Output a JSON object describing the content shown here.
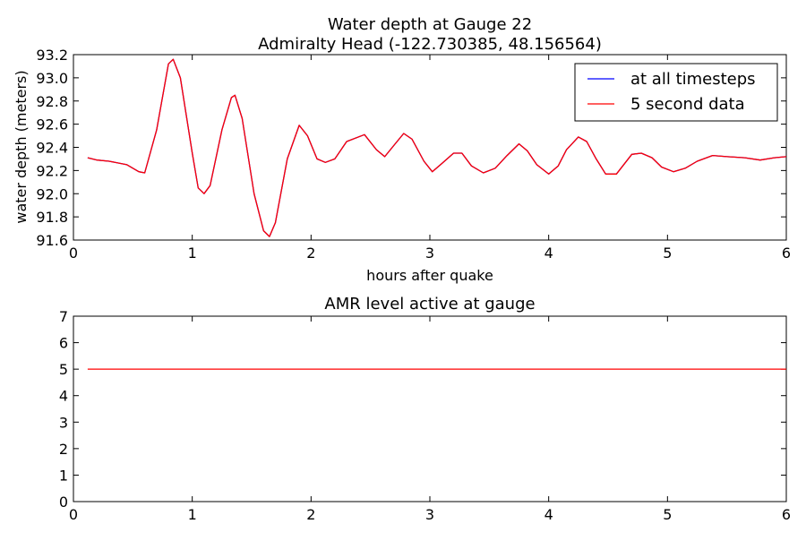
{
  "chart_data": [
    {
      "type": "line",
      "title": "Water depth at Gauge 22",
      "subtitle": "Admiralty Head  (-122.730385, 48.156564)",
      "xlabel": "hours after quake",
      "ylabel": "water depth (meters)",
      "xlim": [
        0,
        6
      ],
      "ylim": [
        91.6,
        93.2
      ],
      "xticks": [
        "0",
        "1",
        "2",
        "3",
        "4",
        "5",
        "6"
      ],
      "yticks": [
        "91.6",
        "91.8",
        "92.0",
        "92.2",
        "92.4",
        "92.6",
        "92.8",
        "93.0",
        "93.2"
      ],
      "grid": false,
      "legend_position": "top-right",
      "series": [
        {
          "name": "at all timesteps",
          "color": "#0000ff",
          "points": [
            [
              0.12,
              92.31
            ],
            [
              0.2,
              92.29
            ],
            [
              0.3,
              92.28
            ],
            [
              0.45,
              92.25
            ],
            [
              0.55,
              92.19
            ],
            [
              0.6,
              92.18
            ],
            [
              0.7,
              92.55
            ],
            [
              0.8,
              93.12
            ],
            [
              0.84,
              93.16
            ],
            [
              0.9,
              93.0
            ],
            [
              1.0,
              92.35
            ],
            [
              1.05,
              92.05
            ],
            [
              1.1,
              92.0
            ],
            [
              1.15,
              92.07
            ],
            [
              1.25,
              92.55
            ],
            [
              1.33,
              92.83
            ],
            [
              1.36,
              92.85
            ],
            [
              1.42,
              92.65
            ],
            [
              1.52,
              92.0
            ],
            [
              1.6,
              91.68
            ],
            [
              1.65,
              91.63
            ],
            [
              1.7,
              91.75
            ],
            [
              1.8,
              92.3
            ],
            [
              1.9,
              92.59
            ],
            [
              1.97,
              92.5
            ],
            [
              2.05,
              92.3
            ],
            [
              2.12,
              92.27
            ],
            [
              2.2,
              92.3
            ],
            [
              2.3,
              92.45
            ],
            [
              2.45,
              92.51
            ],
            [
              2.55,
              92.38
            ],
            [
              2.62,
              92.32
            ],
            [
              2.7,
              92.42
            ],
            [
              2.78,
              92.52
            ],
            [
              2.85,
              92.47
            ],
            [
              2.95,
              92.28
            ],
            [
              3.02,
              92.19
            ],
            [
              3.1,
              92.26
            ],
            [
              3.2,
              92.35
            ],
            [
              3.27,
              92.35
            ],
            [
              3.35,
              92.24
            ],
            [
              3.45,
              92.18
            ],
            [
              3.55,
              92.22
            ],
            [
              3.65,
              92.33
            ],
            [
              3.75,
              92.43
            ],
            [
              3.82,
              92.37
            ],
            [
              3.9,
              92.25
            ],
            [
              4.0,
              92.17
            ],
            [
              4.08,
              92.24
            ],
            [
              4.15,
              92.38
            ],
            [
              4.25,
              92.49
            ],
            [
              4.32,
              92.45
            ],
            [
              4.4,
              92.3
            ],
            [
              4.48,
              92.17
            ],
            [
              4.57,
              92.17
            ],
            [
              4.7,
              92.34
            ],
            [
              4.78,
              92.35
            ],
            [
              4.87,
              92.31
            ],
            [
              4.95,
              92.23
            ],
            [
              5.05,
              92.19
            ],
            [
              5.15,
              92.22
            ],
            [
              5.25,
              92.28
            ],
            [
              5.38,
              92.33
            ],
            [
              5.5,
              92.32
            ],
            [
              5.65,
              92.31
            ],
            [
              5.78,
              92.29
            ],
            [
              5.9,
              92.31
            ],
            [
              6.0,
              92.32
            ]
          ]
        },
        {
          "name": "5 second data",
          "color": "#ff0000",
          "points": [
            [
              0.12,
              92.31
            ],
            [
              0.2,
              92.29
            ],
            [
              0.3,
              92.28
            ],
            [
              0.45,
              92.25
            ],
            [
              0.55,
              92.19
            ],
            [
              0.6,
              92.18
            ],
            [
              0.7,
              92.55
            ],
            [
              0.8,
              93.12
            ],
            [
              0.84,
              93.16
            ],
            [
              0.9,
              93.0
            ],
            [
              1.0,
              92.35
            ],
            [
              1.05,
              92.05
            ],
            [
              1.1,
              92.0
            ],
            [
              1.15,
              92.07
            ],
            [
              1.25,
              92.55
            ],
            [
              1.33,
              92.83
            ],
            [
              1.36,
              92.85
            ],
            [
              1.42,
              92.65
            ],
            [
              1.52,
              92.0
            ],
            [
              1.6,
              91.68
            ],
            [
              1.65,
              91.63
            ],
            [
              1.7,
              91.75
            ],
            [
              1.8,
              92.3
            ],
            [
              1.9,
              92.59
            ],
            [
              1.97,
              92.5
            ],
            [
              2.05,
              92.3
            ],
            [
              2.12,
              92.27
            ],
            [
              2.2,
              92.3
            ],
            [
              2.3,
              92.45
            ],
            [
              2.45,
              92.51
            ],
            [
              2.55,
              92.38
            ],
            [
              2.62,
              92.32
            ],
            [
              2.7,
              92.42
            ],
            [
              2.78,
              92.52
            ],
            [
              2.85,
              92.47
            ],
            [
              2.95,
              92.28
            ],
            [
              3.02,
              92.19
            ],
            [
              3.1,
              92.26
            ],
            [
              3.2,
              92.35
            ],
            [
              3.27,
              92.35
            ],
            [
              3.35,
              92.24
            ],
            [
              3.45,
              92.18
            ],
            [
              3.55,
              92.22
            ],
            [
              3.65,
              92.33
            ],
            [
              3.75,
              92.43
            ],
            [
              3.82,
              92.37
            ],
            [
              3.9,
              92.25
            ],
            [
              4.0,
              92.17
            ],
            [
              4.08,
              92.24
            ],
            [
              4.15,
              92.38
            ],
            [
              4.25,
              92.49
            ],
            [
              4.32,
              92.45
            ],
            [
              4.4,
              92.3
            ],
            [
              4.48,
              92.17
            ],
            [
              4.57,
              92.17
            ],
            [
              4.7,
              92.34
            ],
            [
              4.78,
              92.35
            ],
            [
              4.87,
              92.31
            ],
            [
              4.95,
              92.23
            ],
            [
              5.05,
              92.19
            ],
            [
              5.15,
              92.22
            ],
            [
              5.25,
              92.28
            ],
            [
              5.38,
              92.33
            ],
            [
              5.5,
              92.32
            ],
            [
              5.65,
              92.31
            ],
            [
              5.78,
              92.29
            ],
            [
              5.9,
              92.31
            ],
            [
              6.0,
              92.32
            ]
          ]
        }
      ]
    },
    {
      "type": "line",
      "title": "AMR level active at gauge",
      "xlabel": "",
      "ylabel": "",
      "xlim": [
        0,
        6
      ],
      "ylim": [
        0,
        7
      ],
      "xticks": [
        "0",
        "1",
        "2",
        "3",
        "4",
        "5",
        "6"
      ],
      "yticks": [
        "0",
        "1",
        "2",
        "3",
        "4",
        "5",
        "6",
        "7"
      ],
      "grid": false,
      "series": [
        {
          "color": "#ff0000",
          "points": [
            [
              0.12,
              5
            ],
            [
              6.0,
              5
            ]
          ]
        }
      ]
    }
  ]
}
